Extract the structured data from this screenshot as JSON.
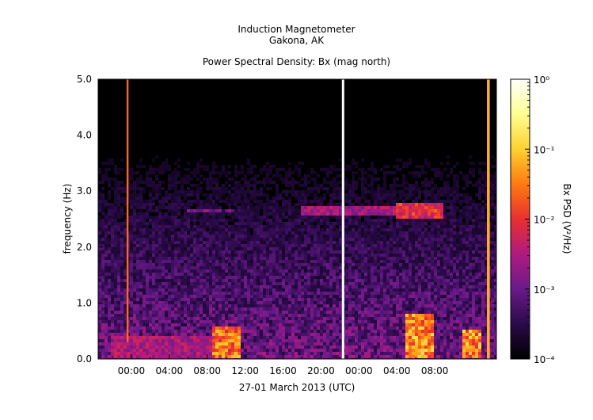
{
  "header": {
    "instrument": "Induction Magnetometer",
    "location": "Gakona, AK",
    "plot_title": "Power Spectral Density: Bx (mag north)"
  },
  "chart_data": {
    "type": "heatmap",
    "title": "Power Spectral Density: Bx (mag north)",
    "xlabel": "27-01 March 2013 (UTC)",
    "ylabel": "frequency (Hz)",
    "x_ticks": [
      "00:00",
      "04:00",
      "08:00",
      "12:00",
      "16:00",
      "20:00",
      "00:00",
      "04:00",
      "08:00"
    ],
    "y_ticks": [
      "0.0",
      "1.0",
      "2.0",
      "3.0",
      "4.0",
      "5.0"
    ],
    "ylim": [
      0,
      5
    ],
    "colorbar": {
      "label": "Bx PSD (V²/Hz)",
      "scale": "log",
      "range": [
        0.0001,
        1
      ],
      "ticks": [
        "10⁻⁴",
        "10⁻³",
        "10⁻²",
        "10⁻¹",
        "10⁰"
      ],
      "colormap": [
        "#000000",
        "#2a0a4a",
        "#6a1a8a",
        "#b01a80",
        "#e83030",
        "#ff7a10",
        "#ffd030",
        "#ffff90",
        "#ffffff"
      ]
    },
    "features": [
      {
        "name": "band",
        "x_hours": [
          -2,
          9
        ],
        "y": [
          0.0,
          0.4
        ],
        "level": 0.45
      },
      {
        "name": "band",
        "x_hours": [
          6,
          9.5
        ],
        "y": [
          2.6,
          2.7
        ],
        "level": 0.35
      },
      {
        "name": "band",
        "x_hours": [
          10,
          10.8
        ],
        "y": [
          2.6,
          2.7
        ],
        "level": 0.35
      },
      {
        "name": "band",
        "x_hours": [
          18,
          33
        ],
        "y": [
          2.55,
          2.75
        ],
        "level": 0.45
      },
      {
        "name": "band",
        "x_hours": [
          28,
          33
        ],
        "y": [
          2.5,
          2.8
        ],
        "level": 0.6
      },
      {
        "name": "burst",
        "x_hours": [
          8.5,
          11.5
        ],
        "y": [
          0.0,
          0.6
        ],
        "level": 0.75
      },
      {
        "name": "burst",
        "x_hours": [
          29,
          32
        ],
        "y": [
          0.0,
          0.8
        ],
        "level": 0.8
      },
      {
        "name": "burst",
        "x_hours": [
          35,
          37
        ],
        "y": [
          0.0,
          0.5
        ],
        "level": 0.8
      },
      {
        "name": "spike",
        "x_hours": [
          -0.5,
          -0.3
        ],
        "y": [
          0.3,
          5.0
        ],
        "level": 0.6
      },
      {
        "name": "spike",
        "x_hours": [
          22.2,
          22.45
        ],
        "y": [
          0.0,
          5.0
        ],
        "level": 1.0
      },
      {
        "name": "spike",
        "x_hours": [
          37.5,
          37.8
        ],
        "y": [
          0.0,
          5.0
        ],
        "level": 0.7
      }
    ]
  }
}
